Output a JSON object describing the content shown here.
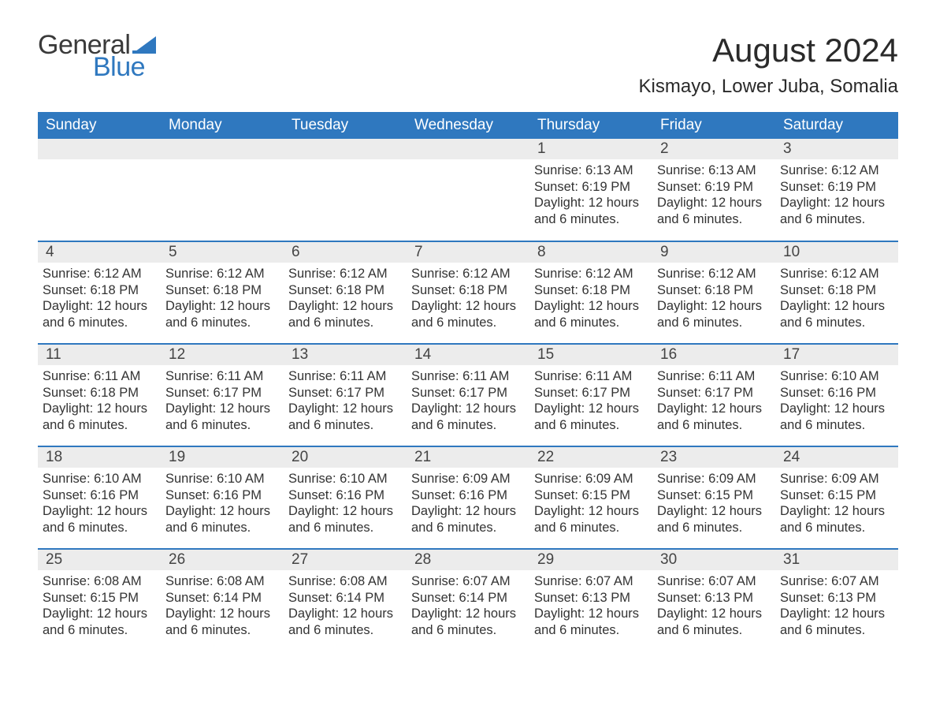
{
  "logo": {
    "text_general": "General",
    "text_blue": "Blue",
    "flag_color": "#2f78bf"
  },
  "title": "August 2024",
  "location": "Kismayo, Lower Juba, Somalia",
  "colors": {
    "header_bg": "#2f78bf",
    "header_text": "#ffffff",
    "daynum_bg": "#ececec",
    "row_divider": "#2f78bf",
    "body_text": "#333333",
    "page_bg": "#ffffff"
  },
  "typography": {
    "title_fontsize": 42,
    "location_fontsize": 24,
    "weekday_fontsize": 19,
    "daynum_fontsize": 19,
    "body_fontsize": 16.5
  },
  "weekdays": [
    "Sunday",
    "Monday",
    "Tuesday",
    "Wednesday",
    "Thursday",
    "Friday",
    "Saturday"
  ],
  "weeks": [
    [
      null,
      null,
      null,
      null,
      {
        "n": "1",
        "sunrise": "Sunrise: 6:13 AM",
        "sunset": "Sunset: 6:19 PM",
        "daylight": "Daylight: 12 hours and 6 minutes."
      },
      {
        "n": "2",
        "sunrise": "Sunrise: 6:13 AM",
        "sunset": "Sunset: 6:19 PM",
        "daylight": "Daylight: 12 hours and 6 minutes."
      },
      {
        "n": "3",
        "sunrise": "Sunrise: 6:12 AM",
        "sunset": "Sunset: 6:19 PM",
        "daylight": "Daylight: 12 hours and 6 minutes."
      }
    ],
    [
      {
        "n": "4",
        "sunrise": "Sunrise: 6:12 AM",
        "sunset": "Sunset: 6:18 PM",
        "daylight": "Daylight: 12 hours and 6 minutes."
      },
      {
        "n": "5",
        "sunrise": "Sunrise: 6:12 AM",
        "sunset": "Sunset: 6:18 PM",
        "daylight": "Daylight: 12 hours and 6 minutes."
      },
      {
        "n": "6",
        "sunrise": "Sunrise: 6:12 AM",
        "sunset": "Sunset: 6:18 PM",
        "daylight": "Daylight: 12 hours and 6 minutes."
      },
      {
        "n": "7",
        "sunrise": "Sunrise: 6:12 AM",
        "sunset": "Sunset: 6:18 PM",
        "daylight": "Daylight: 12 hours and 6 minutes."
      },
      {
        "n": "8",
        "sunrise": "Sunrise: 6:12 AM",
        "sunset": "Sunset: 6:18 PM",
        "daylight": "Daylight: 12 hours and 6 minutes."
      },
      {
        "n": "9",
        "sunrise": "Sunrise: 6:12 AM",
        "sunset": "Sunset: 6:18 PM",
        "daylight": "Daylight: 12 hours and 6 minutes."
      },
      {
        "n": "10",
        "sunrise": "Sunrise: 6:12 AM",
        "sunset": "Sunset: 6:18 PM",
        "daylight": "Daylight: 12 hours and 6 minutes."
      }
    ],
    [
      {
        "n": "11",
        "sunrise": "Sunrise: 6:11 AM",
        "sunset": "Sunset: 6:18 PM",
        "daylight": "Daylight: 12 hours and 6 minutes."
      },
      {
        "n": "12",
        "sunrise": "Sunrise: 6:11 AM",
        "sunset": "Sunset: 6:17 PM",
        "daylight": "Daylight: 12 hours and 6 minutes."
      },
      {
        "n": "13",
        "sunrise": "Sunrise: 6:11 AM",
        "sunset": "Sunset: 6:17 PM",
        "daylight": "Daylight: 12 hours and 6 minutes."
      },
      {
        "n": "14",
        "sunrise": "Sunrise: 6:11 AM",
        "sunset": "Sunset: 6:17 PM",
        "daylight": "Daylight: 12 hours and 6 minutes."
      },
      {
        "n": "15",
        "sunrise": "Sunrise: 6:11 AM",
        "sunset": "Sunset: 6:17 PM",
        "daylight": "Daylight: 12 hours and 6 minutes."
      },
      {
        "n": "16",
        "sunrise": "Sunrise: 6:11 AM",
        "sunset": "Sunset: 6:17 PM",
        "daylight": "Daylight: 12 hours and 6 minutes."
      },
      {
        "n": "17",
        "sunrise": "Sunrise: 6:10 AM",
        "sunset": "Sunset: 6:16 PM",
        "daylight": "Daylight: 12 hours and 6 minutes."
      }
    ],
    [
      {
        "n": "18",
        "sunrise": "Sunrise: 6:10 AM",
        "sunset": "Sunset: 6:16 PM",
        "daylight": "Daylight: 12 hours and 6 minutes."
      },
      {
        "n": "19",
        "sunrise": "Sunrise: 6:10 AM",
        "sunset": "Sunset: 6:16 PM",
        "daylight": "Daylight: 12 hours and 6 minutes."
      },
      {
        "n": "20",
        "sunrise": "Sunrise: 6:10 AM",
        "sunset": "Sunset: 6:16 PM",
        "daylight": "Daylight: 12 hours and 6 minutes."
      },
      {
        "n": "21",
        "sunrise": "Sunrise: 6:09 AM",
        "sunset": "Sunset: 6:16 PM",
        "daylight": "Daylight: 12 hours and 6 minutes."
      },
      {
        "n": "22",
        "sunrise": "Sunrise: 6:09 AM",
        "sunset": "Sunset: 6:15 PM",
        "daylight": "Daylight: 12 hours and 6 minutes."
      },
      {
        "n": "23",
        "sunrise": "Sunrise: 6:09 AM",
        "sunset": "Sunset: 6:15 PM",
        "daylight": "Daylight: 12 hours and 6 minutes."
      },
      {
        "n": "24",
        "sunrise": "Sunrise: 6:09 AM",
        "sunset": "Sunset: 6:15 PM",
        "daylight": "Daylight: 12 hours and 6 minutes."
      }
    ],
    [
      {
        "n": "25",
        "sunrise": "Sunrise: 6:08 AM",
        "sunset": "Sunset: 6:15 PM",
        "daylight": "Daylight: 12 hours and 6 minutes."
      },
      {
        "n": "26",
        "sunrise": "Sunrise: 6:08 AM",
        "sunset": "Sunset: 6:14 PM",
        "daylight": "Daylight: 12 hours and 6 minutes."
      },
      {
        "n": "27",
        "sunrise": "Sunrise: 6:08 AM",
        "sunset": "Sunset: 6:14 PM",
        "daylight": "Daylight: 12 hours and 6 minutes."
      },
      {
        "n": "28",
        "sunrise": "Sunrise: 6:07 AM",
        "sunset": "Sunset: 6:14 PM",
        "daylight": "Daylight: 12 hours and 6 minutes."
      },
      {
        "n": "29",
        "sunrise": "Sunrise: 6:07 AM",
        "sunset": "Sunset: 6:13 PM",
        "daylight": "Daylight: 12 hours and 6 minutes."
      },
      {
        "n": "30",
        "sunrise": "Sunrise: 6:07 AM",
        "sunset": "Sunset: 6:13 PM",
        "daylight": "Daylight: 12 hours and 6 minutes."
      },
      {
        "n": "31",
        "sunrise": "Sunrise: 6:07 AM",
        "sunset": "Sunset: 6:13 PM",
        "daylight": "Daylight: 12 hours and 6 minutes."
      }
    ]
  ]
}
